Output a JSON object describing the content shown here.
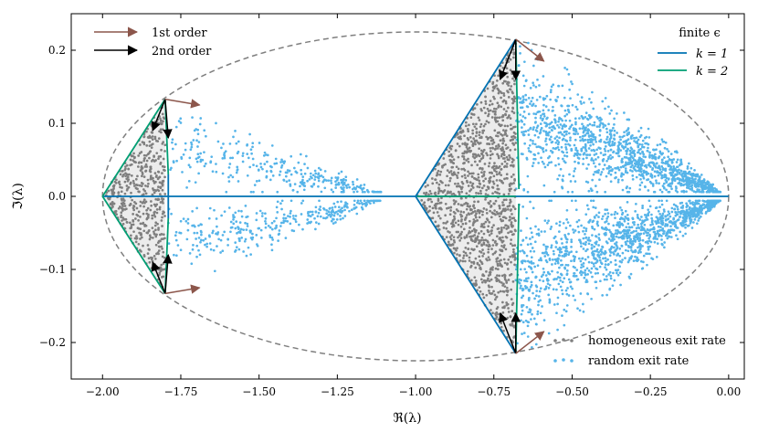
{
  "chart_data": {
    "type": "scatter",
    "title": "",
    "xlabel": "ℜ(λ)",
    "ylabel": "ℑ(λ)",
    "xlim": [
      -2.1,
      0.05
    ],
    "ylim": [
      -0.25,
      0.25
    ],
    "xticks": [
      -2.0,
      -1.75,
      -1.5,
      -1.25,
      -1.0,
      -0.75,
      -0.5,
      -0.25,
      0.0
    ],
    "xtick_labels": [
      "−2.00",
      "−1.75",
      "−1.50",
      "−1.25",
      "−1.00",
      "−0.75",
      "−0.50",
      "−0.25",
      "0.00"
    ],
    "yticks": [
      -0.2,
      -0.1,
      0.0,
      0.1,
      0.2
    ],
    "ytick_labels": [
      "−0.2",
      "−0.1",
      "0.0",
      "0.1",
      "0.2"
    ],
    "colors": {
      "homogeneous": "#7f7f7f",
      "random": "#56b4e9",
      "k1": "#0072b2",
      "k2": "#009e73",
      "first_order": "#8c564b",
      "second_order": "#000000",
      "ellipse": "#7f7f7f"
    },
    "ellipse": {
      "center": [
        -1.0,
        0.0
      ],
      "semi_axis_re": 1.0,
      "semi_axis_im": 0.225
    },
    "homogeneous_clusters": [
      {
        "apex": [
          -2.0,
          0.0
        ],
        "edge_re": -1.8,
        "peak_im": 0.133
      },
      {
        "apex": [
          -1.0,
          0.0
        ],
        "edge_re": -0.68,
        "peak_im": 0.215
      }
    ],
    "random_clusters": [
      {
        "re_range": [
          -1.78,
          -1.05
        ],
        "im_max": 0.12
      },
      {
        "re_range": [
          -0.68,
          -0.02
        ],
        "im_max": 0.21
      }
    ],
    "legend_arrows": {
      "title": "",
      "entries": [
        "1st order",
        "2nd order"
      ],
      "position": "top-left"
    },
    "legend_lines": {
      "title": "finite ϵ",
      "entries": [
        "k = 1",
        "k = 2"
      ],
      "position": "top-right"
    },
    "legend_scatter": {
      "entries": [
        "homogeneous exit rate",
        "random exit rate"
      ],
      "position": "bottom-right"
    }
  }
}
